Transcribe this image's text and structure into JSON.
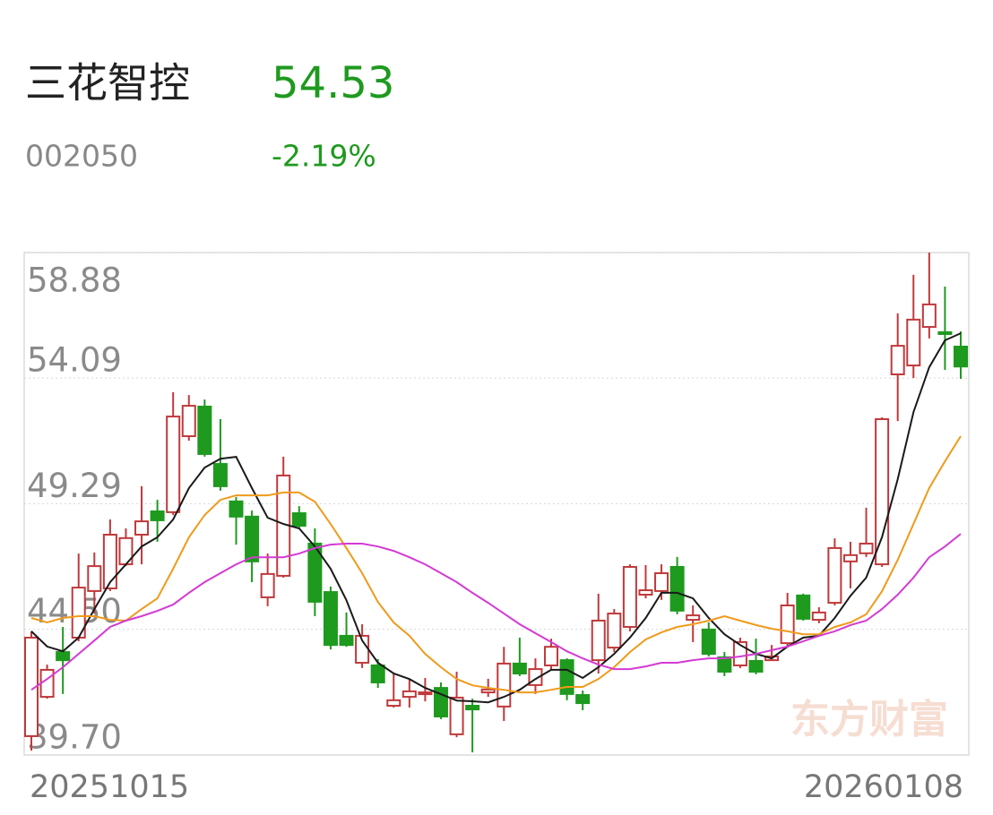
{
  "header": {
    "name": "三花智控",
    "price": "54.53",
    "change": "-2.19%",
    "code": "002050"
  },
  "chart_data": {
    "type": "candlestick",
    "watermark": "东方财富",
    "categories": [
      "20251015",
      null,
      null,
      null,
      null,
      null,
      null,
      null,
      null,
      null,
      null,
      null,
      null,
      null,
      null,
      null,
      null,
      null,
      null,
      null,
      null,
      null,
      null,
      null,
      null,
      null,
      null,
      null,
      null,
      null,
      null,
      null,
      null,
      null,
      null,
      null,
      null,
      null,
      null,
      null,
      null,
      null,
      null,
      null,
      null,
      null,
      null,
      null,
      null,
      null,
      null,
      null,
      null,
      null,
      null,
      null,
      null,
      null,
      null,
      "20260108"
    ],
    "open": [
      40.42,
      41.92,
      43.63,
      44.18,
      45.96,
      46.06,
      46.98,
      48.11,
      49.0,
      48.97,
      51.87,
      53.0,
      50.81,
      49.38,
      48.8,
      45.72,
      46.54,
      48.93,
      47.77,
      45.92,
      44.25,
      43.22,
      43.12,
      41.58,
      41.92,
      42.03,
      42.26,
      40.49,
      41.58,
      42.09,
      41.55,
      43.19,
      42.37,
      43.12,
      43.32,
      41.99,
      43.32,
      43.8,
      44.59,
      45.82,
      45.96,
      46.88,
      44.86,
      44.49,
      43.43,
      43.12,
      43.29,
      43.32,
      43.97,
      45.79,
      44.86,
      45.51,
      47.09,
      47.4,
      46.98,
      54.23,
      54.57,
      56.04,
      55.84,
      55.29
    ],
    "high": [
      44.42,
      43.15,
      44.59,
      47.39,
      47.43,
      48.69,
      48.35,
      49.96,
      49.44,
      53.55,
      53.44,
      53.27,
      52.52,
      49.55,
      49.03,
      47.39,
      51.09,
      49.2,
      48.35,
      46.13,
      45.14,
      44.69,
      43.36,
      42.81,
      42.61,
      42.64,
      42.47,
      42.88,
      41.85,
      42.61,
      43.83,
      44.18,
      43.39,
      44.14,
      43.39,
      42.16,
      45.86,
      45.27,
      46.98,
      46.95,
      46.98,
      47.26,
      45.41,
      44.76,
      43.63,
      44.18,
      44.14,
      43.9,
      45.89,
      45.86,
      45.34,
      47.97,
      47.84,
      49.14,
      52.59,
      56.56,
      58.03,
      58.88,
      57.58,
      55.87
    ],
    "low": [
      39.87,
      41.85,
      42.03,
      44.04,
      45.1,
      45.96,
      46.91,
      46.98,
      47.84,
      48.86,
      51.7,
      51.09,
      49.79,
      47.73,
      46.3,
      45.38,
      46.47,
      48.35,
      45.0,
      43.73,
      43.83,
      43.02,
      42.26,
      41.51,
      41.51,
      41.75,
      41.07,
      40.38,
      39.8,
      41.92,
      41.0,
      42.71,
      42.03,
      42.95,
      41.79,
      41.41,
      42.81,
      43.63,
      44.42,
      45.68,
      45.62,
      45.07,
      44.01,
      43.46,
      42.71,
      43.02,
      42.78,
      43.32,
      43.8,
      44.83,
      44.73,
      45.41,
      46.06,
      47.26,
      46.88,
      52.45,
      54.09,
      55.6,
      54.4,
      54.06
    ],
    "close": [
      44.18,
      42.95,
      43.32,
      46.09,
      46.91,
      48.11,
      47.98,
      48.62,
      48.66,
      52.62,
      53.03,
      51.19,
      49.96,
      48.8,
      47.09,
      46.61,
      50.37,
      48.45,
      45.55,
      43.9,
      43.9,
      44.25,
      42.47,
      41.79,
      42.13,
      42.09,
      41.17,
      41.89,
      41.44,
      42.2,
      43.19,
      42.81,
      42.98,
      43.83,
      42.03,
      41.68,
      44.83,
      45.1,
      46.88,
      45.99,
      46.64,
      45.21,
      45.03,
      43.56,
      42.88,
      44.01,
      42.88,
      43.46,
      45.41,
      44.9,
      45.14,
      47.6,
      47.33,
      47.77,
      52.52,
      55.32,
      56.32,
      56.9,
      55.77,
      54.53
    ],
    "up_color": "#c0393b",
    "down_color": "#1e9a1e",
    "moving_averages": [
      {
        "color": "#1a1a1a",
        "values": [
          44.42,
          43.84,
          43.66,
          44.18,
          45.27,
          46.3,
          46.98,
          47.66,
          48.01,
          48.69,
          49.89,
          50.67,
          51.01,
          51.08,
          49.89,
          48.76,
          48.52,
          48.35,
          47.66,
          46.81,
          45.61,
          44.07,
          43.22,
          42.81,
          42.6,
          42.26,
          42.02,
          41.78,
          41.75,
          41.71,
          41.92,
          42.19,
          42.6,
          42.95,
          42.95,
          42.64,
          43.05,
          43.56,
          44.18,
          44.93,
          45.89,
          45.89,
          45.68,
          44.93,
          44.31,
          43.9,
          43.56,
          43.39,
          43.84,
          44.18,
          44.25,
          44.93,
          45.78,
          46.47,
          48.01,
          50.23,
          52.79,
          54.5,
          55.53,
          55.8
        ]
      },
      {
        "color": "#f09a1a",
        "values": [
          44.93,
          44.76,
          44.93,
          45.0,
          45.0,
          44.86,
          44.83,
          45.27,
          45.68,
          46.81,
          48.01,
          48.86,
          49.44,
          49.61,
          49.61,
          49.61,
          49.72,
          49.72,
          49.37,
          48.52,
          47.6,
          46.64,
          45.54,
          44.76,
          44.25,
          43.56,
          43.05,
          42.6,
          42.36,
          42.26,
          42.19,
          42.09,
          42.09,
          42.19,
          42.3,
          42.3,
          42.6,
          43.05,
          43.63,
          44.11,
          44.38,
          44.59,
          44.69,
          44.83,
          45.0,
          44.83,
          44.66,
          44.52,
          44.42,
          44.31,
          44.31,
          44.59,
          44.76,
          45.07,
          45.95,
          47.15,
          48.52,
          49.89,
          50.91,
          51.87
        ]
      },
      {
        "color": "#d43ad4",
        "values": [
          42.19,
          42.6,
          43.05,
          43.56,
          44.07,
          44.59,
          44.83,
          45.0,
          45.2,
          45.44,
          45.89,
          46.3,
          46.64,
          46.98,
          47.25,
          47.25,
          47.25,
          47.39,
          47.6,
          47.73,
          47.77,
          47.77,
          47.66,
          47.49,
          47.25,
          46.98,
          46.64,
          46.3,
          45.89,
          45.51,
          45.1,
          44.69,
          44.35,
          44.01,
          43.66,
          43.39,
          43.15,
          42.98,
          42.98,
          43.08,
          43.22,
          43.22,
          43.32,
          43.39,
          43.39,
          43.46,
          43.56,
          43.7,
          43.84,
          44.04,
          44.25,
          44.42,
          44.66,
          44.83,
          45.27,
          45.82,
          46.47,
          47.25,
          47.66,
          48.14
        ]
      }
    ],
    "ylim": [
      39.7,
      58.88
    ],
    "yticks": [
      58.88,
      54.09,
      49.29,
      {
        "value": 44.5,
        "label": "44.50"
      },
      {
        "value": 39.7,
        "label": "39.70"
      }
    ],
    "grid": true
  }
}
